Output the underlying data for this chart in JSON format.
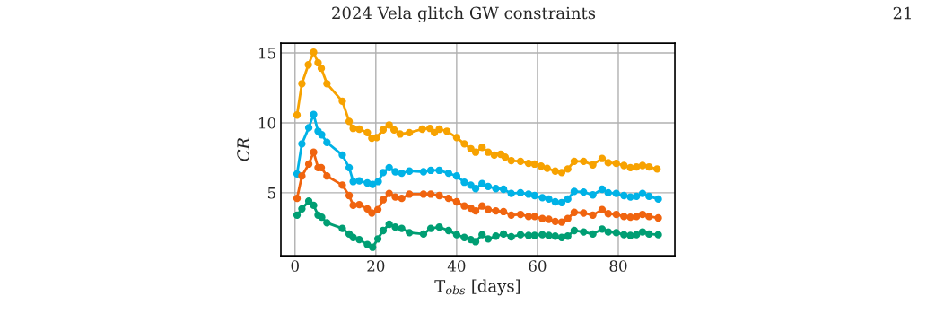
{
  "chart_data": {
    "type": "line",
    "xlabel": "T$_{obs}$ [days]",
    "ylabel": "CR",
    "annotations": [
      "2024 Vela glitch GW constraints",
      "21"
    ],
    "xlim": [
      -3.5,
      94
    ],
    "xticks": [
      0,
      20,
      40,
      60,
      80
    ],
    "ylim": [
      0.5,
      15.7
    ],
    "yticks": [
      5,
      10,
      15
    ],
    "grid": true,
    "marker": "circle",
    "line_style": "solid",
    "series": [
      {
        "color": "#f7a200",
        "x": [
          0.5,
          1.7,
          3.3,
          4.6,
          5.7,
          6.5,
          7.9,
          11.7,
          13.4,
          14.4,
          15.9,
          17.9,
          19.0,
          20.2,
          21.8,
          23.3,
          24.5,
          26.0,
          28.3,
          31.5,
          33.4,
          34.5,
          35.7,
          37.6,
          40.0,
          41.9,
          43.5,
          44.7,
          46.3,
          47.8,
          49.3,
          50.9,
          52.0,
          53.5,
          55.8,
          57.8,
          59.3,
          60.9,
          62.4,
          64.4,
          66.0,
          67.5,
          69.1,
          71.4,
          73.7,
          76.0,
          77.5,
          79.5,
          81.4,
          83.0,
          84.5,
          86.0,
          87.6,
          89.6
        ],
        "values": [
          10.56,
          12.8,
          14.15,
          15.05,
          14.3,
          13.9,
          12.8,
          11.55,
          10.1,
          9.6,
          9.55,
          9.3,
          8.9,
          8.95,
          9.5,
          9.85,
          9.5,
          9.2,
          9.3,
          9.55,
          9.6,
          9.3,
          9.55,
          9.4,
          8.95,
          8.5,
          8.15,
          7.9,
          8.25,
          7.9,
          7.7,
          7.75,
          7.55,
          7.3,
          7.25,
          7.1,
          7.05,
          6.9,
          6.75,
          6.55,
          6.45,
          6.7,
          7.25,
          7.25,
          7.0,
          7.45,
          7.15,
          7.1,
          6.95,
          6.8,
          6.85,
          6.95,
          6.85,
          6.7
        ]
      },
      {
        "color": "#00b2e6",
        "x": [
          0.5,
          1.7,
          3.4,
          4.6,
          5.7,
          6.6,
          7.9,
          11.7,
          13.4,
          14.4,
          15.9,
          17.9,
          19.2,
          20.6,
          21.8,
          23.3,
          24.8,
          26.4,
          28.3,
          31.8,
          33.6,
          35.7,
          38.0,
          40.0,
          41.9,
          43.5,
          44.7,
          46.3,
          47.8,
          49.7,
          51.6,
          53.5,
          55.8,
          57.8,
          59.3,
          61.2,
          62.8,
          64.4,
          66.0,
          67.5,
          69.1,
          71.4,
          73.7,
          76.0,
          77.5,
          79.5,
          81.4,
          83.0,
          84.5,
          86.0,
          87.6,
          89.9
        ],
        "values": [
          6.35,
          8.5,
          9.65,
          10.6,
          9.4,
          9.15,
          8.6,
          7.7,
          6.8,
          5.8,
          5.85,
          5.7,
          5.6,
          5.8,
          6.45,
          6.8,
          6.5,
          6.4,
          6.55,
          6.5,
          6.6,
          6.6,
          6.4,
          6.2,
          5.75,
          5.55,
          5.3,
          5.65,
          5.45,
          5.3,
          5.25,
          4.95,
          5.0,
          4.9,
          4.8,
          4.65,
          4.55,
          4.35,
          4.3,
          4.55,
          5.1,
          5.05,
          4.85,
          5.25,
          5.0,
          4.95,
          4.8,
          4.7,
          4.75,
          4.95,
          4.75,
          4.55
        ]
      },
      {
        "color": "#f0640f",
        "x": [
          0.5,
          1.7,
          3.4,
          4.6,
          5.7,
          6.5,
          7.9,
          11.7,
          13.4,
          14.4,
          15.9,
          17.9,
          19.0,
          20.5,
          21.8,
          23.3,
          24.8,
          26.4,
          28.3,
          31.8,
          33.6,
          35.7,
          38.0,
          40.0,
          41.9,
          43.5,
          44.7,
          46.3,
          47.8,
          49.7,
          51.6,
          53.5,
          55.8,
          57.8,
          59.3,
          61.2,
          62.8,
          64.4,
          66.0,
          67.5,
          69.1,
          71.4,
          73.7,
          76.0,
          77.5,
          79.5,
          81.4,
          83.0,
          84.5,
          86.0,
          87.6,
          89.9
        ],
        "values": [
          4.6,
          6.2,
          7.05,
          7.9,
          6.8,
          6.8,
          6.2,
          5.55,
          4.8,
          4.1,
          4.15,
          3.85,
          3.55,
          3.8,
          4.5,
          4.95,
          4.7,
          4.6,
          4.9,
          4.9,
          4.9,
          4.8,
          4.6,
          4.35,
          4.05,
          3.9,
          3.7,
          4.05,
          3.8,
          3.7,
          3.65,
          3.4,
          3.45,
          3.3,
          3.3,
          3.15,
          3.1,
          2.95,
          2.9,
          3.15,
          3.6,
          3.55,
          3.4,
          3.8,
          3.5,
          3.45,
          3.3,
          3.25,
          3.3,
          3.45,
          3.3,
          3.2
        ]
      },
      {
        "color": "#009e73",
        "x": [
          0.5,
          1.7,
          3.4,
          4.6,
          5.7,
          6.6,
          7.9,
          11.7,
          13.4,
          14.4,
          15.9,
          17.9,
          19.2,
          20.5,
          21.8,
          23.3,
          24.8,
          26.4,
          28.3,
          31.8,
          33.6,
          35.7,
          38.0,
          40.0,
          41.9,
          43.5,
          44.7,
          46.3,
          47.8,
          49.7,
          51.6,
          53.5,
          55.8,
          57.8,
          59.3,
          61.2,
          62.8,
          64.4,
          66.0,
          67.5,
          69.1,
          71.4,
          73.7,
          76.0,
          77.5,
          79.5,
          81.4,
          83.0,
          84.5,
          86.0,
          87.6,
          89.9
        ],
        "values": [
          3.4,
          3.85,
          4.4,
          4.1,
          3.4,
          3.25,
          2.85,
          2.45,
          2.05,
          1.8,
          1.65,
          1.3,
          1.1,
          1.7,
          2.3,
          2.75,
          2.55,
          2.45,
          2.15,
          2.05,
          2.45,
          2.55,
          2.3,
          2.0,
          1.8,
          1.65,
          1.5,
          2.0,
          1.7,
          1.9,
          2.05,
          1.85,
          2.0,
          1.95,
          1.95,
          2.0,
          1.95,
          1.9,
          1.8,
          1.9,
          2.3,
          2.2,
          2.05,
          2.4,
          2.2,
          2.15,
          2.0,
          1.95,
          2.0,
          2.2,
          2.05,
          2.0
        ]
      }
    ]
  }
}
